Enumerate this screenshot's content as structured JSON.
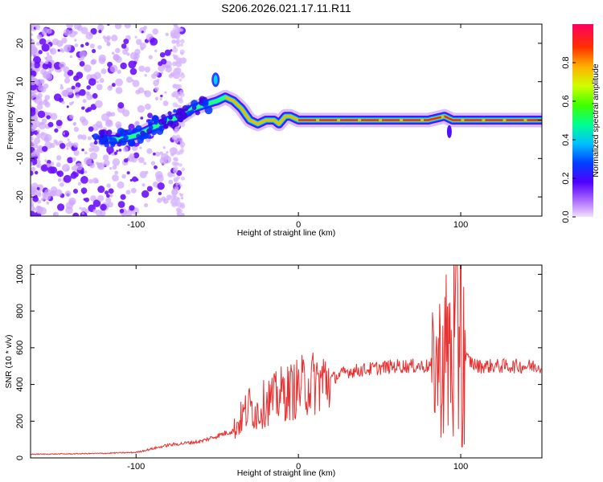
{
  "title": "S206.2026.021.17.11.R11",
  "chart_data": [
    {
      "type": "heatmap",
      "xlabel": "Height of straight line (km)",
      "ylabel": "Frequency (Hz)",
      "xlim": [
        -165,
        150
      ],
      "ylim": [
        -25,
        25
      ],
      "x_ticks": [
        -100,
        0,
        100
      ],
      "y_ticks": [
        -20,
        -10,
        0,
        10,
        20
      ],
      "x_tick_labels": [
        "-100",
        "0",
        "100"
      ],
      "y_tick_labels": [
        "-20",
        "-10",
        "0",
        "10",
        "20"
      ],
      "ridge": {
        "x": [
          -120,
          -110,
          -100,
          -90,
          -80,
          -72,
          -65,
          -58,
          -50,
          -45,
          -40,
          -35,
          -30,
          -25,
          -20,
          -15,
          -12,
          -8,
          -5,
          0,
          10,
          50,
          80,
          90,
          95,
          100,
          120,
          150
        ],
        "y": [
          -5,
          -5,
          -4,
          -2,
          0,
          1,
          3,
          4,
          5,
          6,
          5,
          3,
          0,
          -1,
          0,
          0,
          -1,
          1,
          1,
          0,
          0,
          0,
          0,
          1,
          0,
          0,
          0,
          0
        ]
      },
      "colorbar": {
        "label": "Normalized spectral amplitude",
        "range": [
          0,
          1
        ],
        "ticks": [
          0.0,
          0.2,
          0.4,
          0.6,
          0.8
        ],
        "tick_labels": [
          "0.0",
          "0.2",
          "0.4",
          "0.6",
          "0.8"
        ]
      }
    },
    {
      "type": "line",
      "xlabel": "Height of straight line (km)",
      "ylabel": "SNR (10 * v/v)",
      "xlim": [
        -165,
        150
      ],
      "ylim": [
        0,
        1050
      ],
      "x_ticks": [
        -100,
        0,
        100
      ],
      "y_ticks": [
        0,
        200,
        400,
        600,
        800,
        1000
      ],
      "x_tick_labels": [
        "-100",
        "0",
        "100"
      ],
      "y_tick_labels": [
        "0",
        "200",
        "400",
        "600",
        "800",
        "1000"
      ],
      "color": "#e83030",
      "series": [
        {
          "name": "SNR",
          "x": [
            -165,
            -140,
            -120,
            -100,
            -90,
            -80,
            -70,
            -60,
            -50,
            -40,
            -35,
            -30,
            -25,
            -20,
            -15,
            -10,
            -5,
            0,
            5,
            10,
            20,
            25,
            30,
            40,
            50,
            60,
            70,
            80,
            85,
            90,
            95,
            100,
            110,
            120,
            130,
            140,
            150
          ],
          "values": [
            20,
            22,
            25,
            30,
            50,
            70,
            80,
            90,
            120,
            150,
            220,
            280,
            250,
            310,
            320,
            350,
            360,
            380,
            400,
            410,
            430,
            450,
            470,
            480,
            490,
            500,
            500,
            500,
            510,
            540,
            600,
            560,
            500,
            500,
            500,
            500,
            500
          ]
        }
      ]
    }
  ]
}
